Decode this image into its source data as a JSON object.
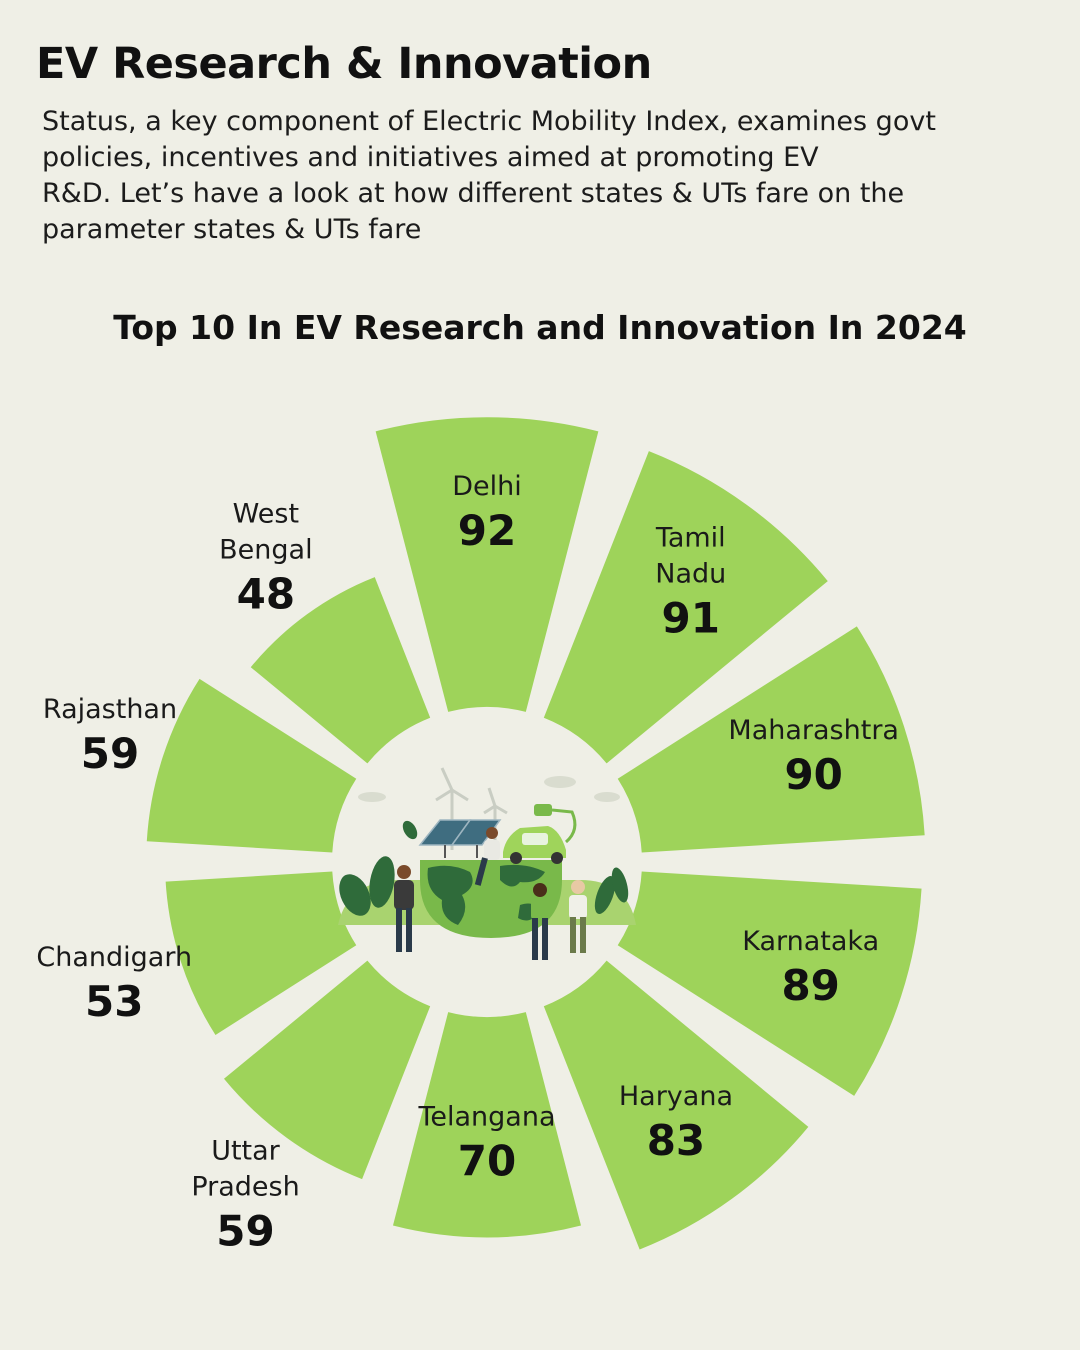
{
  "header": {
    "title": "EV Research & Innovation",
    "subtitle": "Status, a key component of Electric Mobility Index, examines govt\npolicies, incentives and initiatives aimed at promoting EV\nR&D. Let’s have a look at how different states & UTs fare on the\nparameter states & UTs fare"
  },
  "chart_data": {
    "type": "bar",
    "subtype": "radial",
    "title": "Top 10 In EV Research and Innovation In 2024",
    "categories": [
      "Delhi",
      "Tamil Nadu",
      "Maharashtra",
      "Karnataka",
      "Haryana",
      "Telangana",
      "Uttar Pradesh",
      "Chandigarh",
      "Rajasthan",
      "West Bengal"
    ],
    "values": [
      92,
      91,
      90,
      89,
      83,
      70,
      59,
      53,
      59,
      48
    ],
    "label_lines": [
      [
        "Delhi"
      ],
      [
        "Tamil",
        "Nadu"
      ],
      [
        "Maharashtra"
      ],
      [
        "Karnataka"
      ],
      [
        "Haryana"
      ],
      [
        "Telangana"
      ],
      [
        "Uttar",
        "Pradesh"
      ],
      [
        "Chandigarh"
      ],
      [
        "Rajasthan"
      ],
      [
        "West",
        "Bengal"
      ]
    ],
    "ylim": [
      0,
      100
    ],
    "bar_color": "#9ed35a"
  },
  "illustration": {
    "icon": "green-earth-ev-illustration",
    "colors": {
      "globe": "#79b94a",
      "land": "#2f6b3a",
      "car": "#9fd45b"
    }
  }
}
